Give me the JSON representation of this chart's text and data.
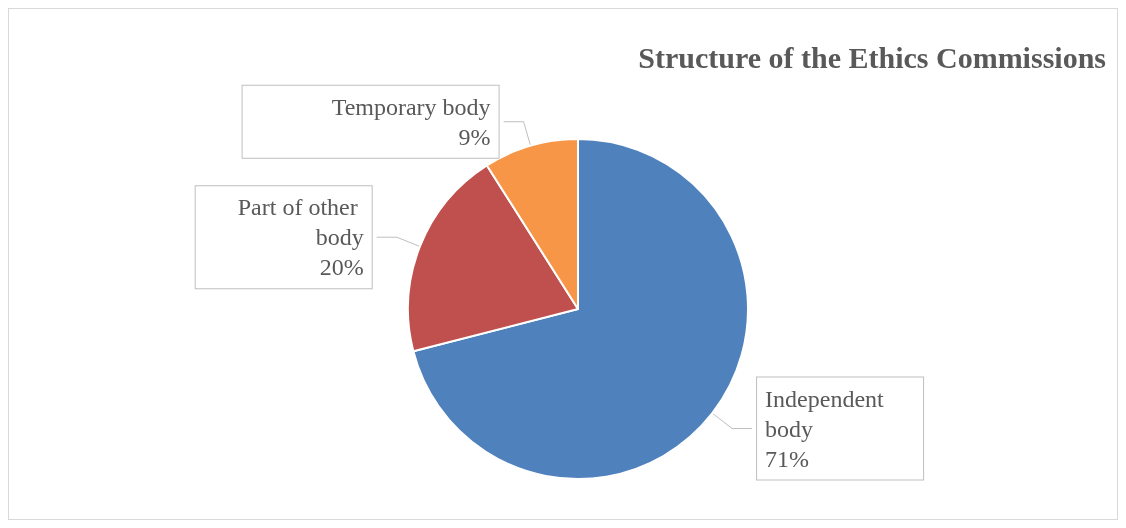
{
  "chart_data": {
    "type": "pie",
    "title": "Structure of the Ethics Commissions",
    "categories": [
      "Independent body",
      "Part of other body",
      "Temporary body"
    ],
    "values": [
      71,
      20,
      9
    ],
    "colors": [
      "#4f81bd",
      "#c0504d",
      "#f79646"
    ],
    "value_labels": [
      "71%",
      "20%",
      "9%"
    ],
    "legend": false
  }
}
